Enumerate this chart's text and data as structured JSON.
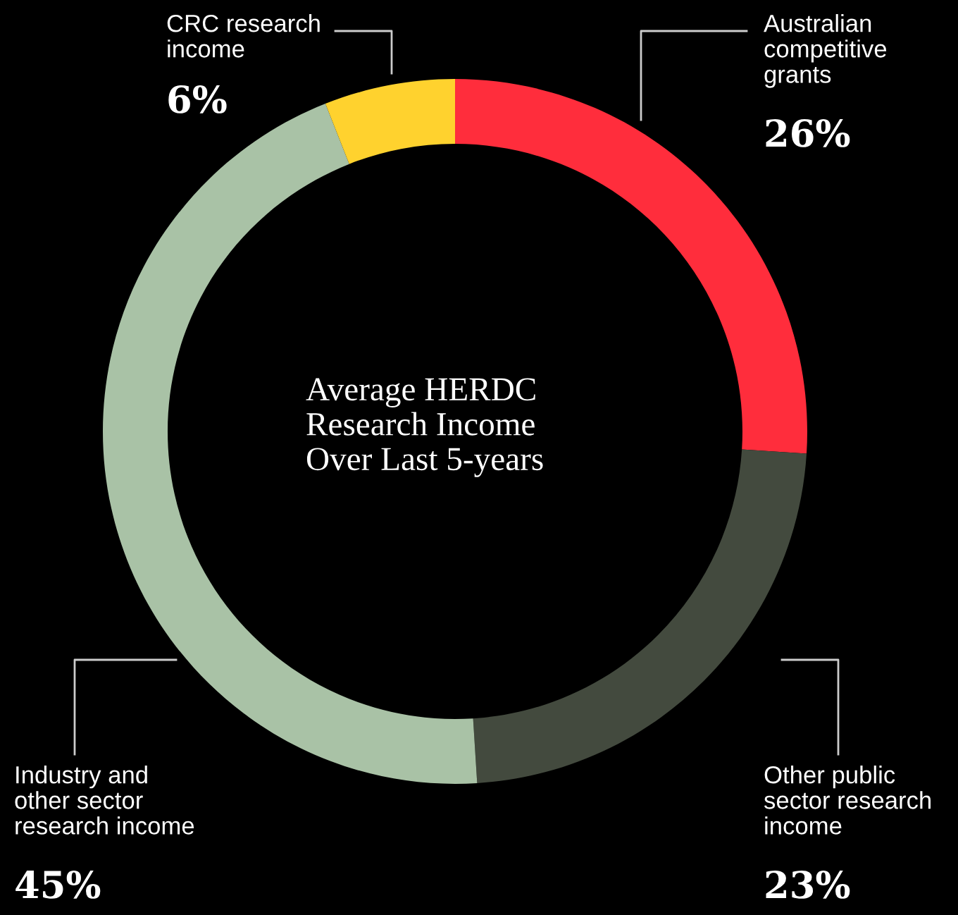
{
  "chart_data": {
    "type": "donut",
    "title": "Average HERDC\nResearch Income\nOver Last 5-years",
    "categories": [
      "Australian\ncompetitive\ngrants",
      "Other public\nsector research\nincome",
      "Industry and\nother sector\nresearch income",
      "CRC research\nincome"
    ],
    "values": [
      26,
      23,
      45,
      6
    ],
    "value_labels": [
      "26%",
      "23%",
      "45%",
      "6%"
    ],
    "colors": [
      "#ff2d3c",
      "#434a3e",
      "#a9c2a6",
      "#ffd22e"
    ],
    "legend": false
  }
}
